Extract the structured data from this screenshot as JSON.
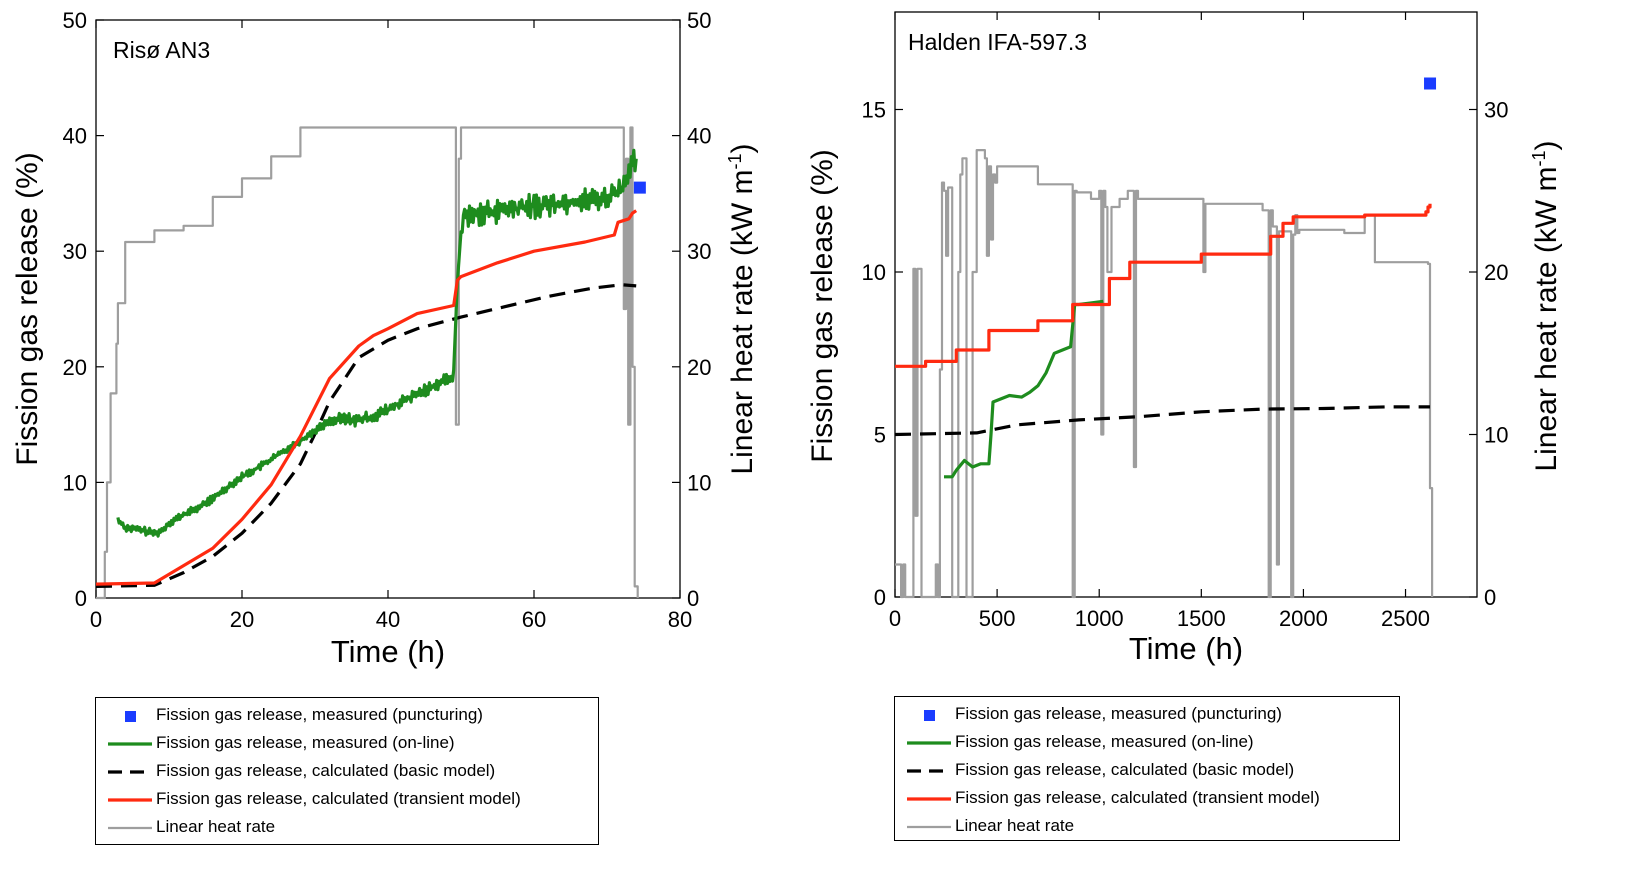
{
  "colors": {
    "measured_puncturing": "#1a3cff",
    "measured_online": "#1e8c1e",
    "basic_model": "#000000",
    "transient_model": "#ff2a10",
    "heat_rate": "#9e9e9e"
  },
  "legend_entries": [
    {
      "key": "punct",
      "label": "Fission gas release, measured (puncturing)"
    },
    {
      "key": "online",
      "label": "Fission gas release, measured (on-line)"
    },
    {
      "key": "basic",
      "label": "Fission gas release, calculated (basic model)"
    },
    {
      "key": "transient",
      "label": "Fission gas release, calculated (transient model)"
    },
    {
      "key": "heat",
      "label": "Linear heat rate"
    }
  ],
  "chart_data": [
    {
      "type": "line",
      "annotation": "Risø AN3",
      "xlabel": "Time (h)",
      "ylabel": "Fission gas release (%)",
      "y2label": "Linear heat rate (kW m⁻¹)",
      "xlim": [
        0,
        80
      ],
      "ylim": [
        0,
        50
      ],
      "y2lim": [
        0,
        50
      ],
      "xticks": [
        "0",
        "20",
        "40",
        "60",
        "80"
      ],
      "yticks": [
        "0",
        "10",
        "20",
        "30",
        "40",
        "50"
      ],
      "y2ticks": [
        "0",
        "10",
        "20",
        "30",
        "40",
        "50"
      ],
      "grid": false,
      "series": [
        {
          "name": "Fission gas release, measured (puncturing)",
          "kind": "marker",
          "x": [
            74.5
          ],
          "y": [
            35.5
          ]
        },
        {
          "name": "Fission gas release, measured (on-line)",
          "kind": "line",
          "noisy": true,
          "x": [
            3,
            4,
            6,
            8,
            9,
            10,
            12,
            14,
            16,
            18,
            20,
            22,
            24,
            26,
            28,
            30,
            32,
            34,
            36,
            38,
            40,
            42,
            44,
            46,
            48,
            49,
            49.5,
            50,
            50.5,
            52,
            55,
            60,
            65,
            70,
            72,
            73,
            74
          ],
          "y": [
            6.8,
            6.1,
            5.9,
            5.6,
            5.8,
            6.5,
            7.2,
            7.8,
            8.6,
            9.6,
            10.5,
            11.2,
            12.0,
            12.8,
            13.6,
            14.5,
            15.3,
            15.5,
            15.4,
            15.7,
            16.3,
            17.0,
            17.6,
            18.3,
            18.9,
            19.2,
            27.0,
            31.5,
            33.0,
            33.2,
            33.5,
            33.9,
            34.3,
            34.6,
            35.5,
            37.0,
            38.0
          ]
        },
        {
          "name": "Fission gas release, calculated (basic model)",
          "kind": "dashed",
          "x": [
            0,
            8,
            12,
            16,
            20,
            24,
            28,
            30,
            32,
            36,
            40,
            44,
            50,
            56,
            62,
            68,
            72,
            74
          ],
          "y": [
            1.0,
            1.1,
            2.2,
            3.6,
            5.6,
            8.2,
            11.6,
            14.2,
            17.0,
            20.8,
            22.3,
            23.3,
            24.3,
            25.2,
            26.1,
            26.8,
            27.1,
            27.0
          ]
        },
        {
          "name": "Fission gas release, calculated (transient model)",
          "kind": "line",
          "x": [
            0,
            8,
            12,
            16,
            20,
            24,
            28,
            32,
            36,
            38,
            40,
            44,
            49,
            49.5,
            50,
            55,
            60,
            67,
            71,
            71.5,
            73,
            73.5,
            74
          ],
          "y": [
            1.2,
            1.3,
            2.8,
            4.3,
            6.8,
            9.8,
            14.0,
            19.0,
            21.8,
            22.7,
            23.3,
            24.6,
            25.3,
            27.5,
            27.8,
            29.0,
            30.0,
            30.8,
            31.4,
            32.5,
            32.8,
            33.3,
            33.5
          ]
        },
        {
          "name": "Linear heat rate",
          "kind": "step",
          "axis": "y2",
          "x": [
            0,
            1.2,
            1.5,
            2,
            2.8,
            3,
            4,
            8,
            12,
            16,
            20,
            24,
            28,
            49,
            49.3,
            49.7,
            50,
            72,
            72.3,
            72.6,
            72.9,
            73.2,
            73.5,
            73.8,
            74.2
          ],
          "y": [
            0,
            4,
            10,
            17.7,
            22,
            25.5,
            30.8,
            31.8,
            32.2,
            34.7,
            36.3,
            38.2,
            40.7,
            40.7,
            15.0,
            38.0,
            40.7,
            40.7,
            25.0,
            38.0,
            15.0,
            40.7,
            20.0,
            1.0,
            0
          ]
        }
      ]
    },
    {
      "type": "line",
      "annotation": "Halden IFA-597.3",
      "xlabel": "Time (h)",
      "ylabel": "Fission gas release (%)",
      "y2label": "Linear heat rate (kW m⁻¹)",
      "xlim": [
        0,
        2850
      ],
      "ylim": [
        0,
        18
      ],
      "y2lim": [
        0,
        36
      ],
      "xticks": [
        "0",
        "500",
        "1000",
        "1500",
        "2000",
        "2500"
      ],
      "xtickvals": [
        0,
        500,
        1000,
        1500,
        2000,
        2500
      ],
      "yticks": [
        "0",
        "5",
        "10",
        "15"
      ],
      "ytickvals": [
        0,
        5,
        10,
        15
      ],
      "y2ticks": [
        "0",
        "10",
        "20",
        "30"
      ],
      "y2tickvals": [
        0,
        10,
        20,
        30
      ],
      "grid": false,
      "series": [
        {
          "name": "Fission gas release, measured (puncturing)",
          "kind": "marker",
          "x": [
            2620
          ],
          "y": [
            15.8
          ]
        },
        {
          "name": "Fission gas release, measured (on-line)",
          "kind": "line",
          "x": [
            240,
            280,
            300,
            340,
            380,
            420,
            460,
            470,
            480,
            520,
            560,
            620,
            660,
            700,
            740,
            780,
            820,
            860,
            880,
            900,
            960,
            1020
          ],
          "y": [
            3.7,
            3.7,
            3.9,
            4.2,
            4.0,
            4.1,
            4.1,
            5.0,
            6.0,
            6.1,
            6.2,
            6.15,
            6.3,
            6.5,
            6.9,
            7.5,
            7.6,
            7.7,
            9.0,
            9.0,
            9.05,
            9.1
          ]
        },
        {
          "name": "Fission gas release, calculated (basic model)",
          "kind": "dashed",
          "x": [
            0,
            400,
            600,
            900,
            1200,
            1500,
            1800,
            2100,
            2400,
            2620
          ],
          "y": [
            5.0,
            5.05,
            5.3,
            5.45,
            5.55,
            5.7,
            5.78,
            5.8,
            5.85,
            5.85
          ]
        },
        {
          "name": "Fission gas release, calculated (transient model)",
          "kind": "step",
          "x": [
            0,
            150,
            300,
            460,
            700,
            870,
            1050,
            1150,
            1500,
            1840,
            1900,
            1950,
            2300,
            2600,
            2610,
            2620
          ],
          "y": [
            7.1,
            7.25,
            7.6,
            8.2,
            8.5,
            9.0,
            9.8,
            10.3,
            10.55,
            11.1,
            11.5,
            11.7,
            11.75,
            11.85,
            12.0,
            12.1
          ]
        },
        {
          "name": "Linear heat rate",
          "kind": "step",
          "axis": "y2",
          "x": [
            0,
            30,
            40,
            50,
            90,
            100,
            110,
            130,
            200,
            210,
            220,
            230,
            240,
            250,
            260,
            280,
            300,
            310,
            320,
            330,
            350,
            370,
            380,
            400,
            420,
            440,
            450,
            460,
            470,
            480,
            490,
            500,
            600,
            700,
            860,
            870,
            880,
            890,
            900,
            960,
            1000,
            1010,
            1020,
            1030,
            1040,
            1060,
            1080,
            1100,
            1140,
            1160,
            1170,
            1180,
            1190,
            1500,
            1510,
            1520,
            1530,
            1800,
            1830,
            1840,
            1850,
            1860,
            1870,
            1880,
            1930,
            1940,
            1950,
            1960,
            1970,
            1980,
            2200,
            2300,
            2350,
            2600,
            2610,
            2620,
            2630
          ],
          "y": [
            2,
            0,
            2,
            0,
            20.2,
            5.0,
            20.2,
            0,
            2,
            0,
            14.0,
            25.5,
            25.0,
            21.0,
            25.2,
            0,
            0,
            20.0,
            26.0,
            27.0,
            0,
            0,
            20.0,
            27.5,
            27.5,
            27.0,
            21.0,
            26.5,
            22.0,
            26.0,
            25.5,
            26.5,
            26.5,
            25.4,
            25.4,
            0,
            25.0,
            24.9,
            24.9,
            24.5,
            25.0,
            10.0,
            25.0,
            24.0,
            20.0,
            24.0,
            24.0,
            24.5,
            25.0,
            25.0,
            8.0,
            25.0,
            24.5,
            24.5,
            20.0,
            24.2,
            24.2,
            23.8,
            0,
            23.8,
            22.8,
            22.8,
            2.0,
            22.5,
            22.5,
            0,
            22.3,
            23.5,
            22.4,
            22.6,
            22.4,
            23.5,
            20.6,
            20.6,
            20.5,
            6.7,
            0
          ]
        }
      ]
    }
  ]
}
